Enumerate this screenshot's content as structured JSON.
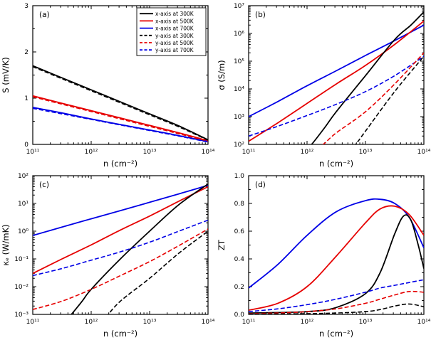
{
  "figure": {
    "background": "#ffffff"
  },
  "colors": {
    "black": "#000000",
    "red": "#e60000",
    "blue": "#0000e6"
  },
  "chart_data": [
    {
      "panel": "(a)",
      "type": "line",
      "xlabel": "n (cm⁻²)",
      "ylabel": "S (mV/K)",
      "xscale": "log",
      "xlim": [
        100000000000.0,
        100000000000000.0
      ],
      "xticks": [
        {
          "v": 100000000000.0,
          "label": "10¹¹"
        },
        {
          "v": 1000000000000.0,
          "label": "10¹²"
        },
        {
          "v": 10000000000000.0,
          "label": "10¹³"
        },
        {
          "v": 100000000000000.0,
          "label": "10¹⁴"
        }
      ],
      "yscale": "linear",
      "ylim": [
        0,
        3
      ],
      "yminor": 0.5,
      "yticks": [
        {
          "v": 0,
          "label": "0"
        },
        {
          "v": 1,
          "label": "1"
        },
        {
          "v": 2,
          "label": "2"
        },
        {
          "v": 3,
          "label": "3"
        }
      ],
      "legend": [
        {
          "label": "x-axis at 300K",
          "color": "#000000",
          "dash": false
        },
        {
          "label": "x-axis at 500K",
          "color": "#e60000",
          "dash": false
        },
        {
          "label": "x-axis at 700K",
          "color": "#0000e6",
          "dash": false
        },
        {
          "label": "y-axis at 300K",
          "color": "#000000",
          "dash": true
        },
        {
          "label": "y-axis at 500K",
          "color": "#e60000",
          "dash": true
        },
        {
          "label": "y-axis at 700K",
          "color": "#0000e6",
          "dash": true
        }
      ],
      "series": [
        {
          "name": "x-axis at 300K",
          "color": "#000000",
          "dash": false,
          "x": [
            100000000000.0,
            316000000000.0,
            1000000000000.0,
            3160000000000.0,
            10000000000000.0,
            31600000000000.0,
            100000000000000.0
          ],
          "y": [
            1.7,
            1.44,
            1.18,
            0.92,
            0.66,
            0.4,
            0.1
          ]
        },
        {
          "name": "x-axis at 500K",
          "color": "#e60000",
          "dash": false,
          "x": [
            100000000000.0,
            316000000000.0,
            1000000000000.0,
            3160000000000.0,
            10000000000000.0,
            31600000000000.0,
            100000000000000.0
          ],
          "y": [
            1.05,
            0.89,
            0.73,
            0.57,
            0.41,
            0.25,
            0.08
          ]
        },
        {
          "name": "x-axis at 700K",
          "color": "#0000e6",
          "dash": false,
          "x": [
            100000000000.0,
            316000000000.0,
            1000000000000.0,
            3160000000000.0,
            10000000000000.0,
            31600000000000.0,
            100000000000000.0
          ],
          "y": [
            0.8,
            0.68,
            0.55,
            0.43,
            0.31,
            0.19,
            0.06
          ]
        },
        {
          "name": "y-axis at 300K",
          "color": "#000000",
          "dash": true,
          "x": [
            100000000000.0,
            316000000000.0,
            1000000000000.0,
            3160000000000.0,
            10000000000000.0,
            31600000000000.0,
            100000000000000.0
          ],
          "y": [
            1.68,
            1.42,
            1.16,
            0.9,
            0.64,
            0.38,
            0.09
          ]
        },
        {
          "name": "y-axis at 500K",
          "color": "#e60000",
          "dash": true,
          "x": [
            100000000000.0,
            316000000000.0,
            1000000000000.0,
            3160000000000.0,
            10000000000000.0,
            31600000000000.0,
            100000000000000.0
          ],
          "y": [
            1.03,
            0.87,
            0.71,
            0.55,
            0.39,
            0.23,
            0.07
          ]
        },
        {
          "name": "y-axis at 700K",
          "color": "#0000e6",
          "dash": true,
          "x": [
            100000000000.0,
            316000000000.0,
            1000000000000.0,
            3160000000000.0,
            10000000000000.0,
            31600000000000.0,
            100000000000000.0
          ],
          "y": [
            0.78,
            0.66,
            0.54,
            0.42,
            0.3,
            0.18,
            0.05
          ]
        }
      ]
    },
    {
      "panel": "(b)",
      "type": "line",
      "xlabel": "n (cm⁻²)",
      "ylabel": "σ (S/m)",
      "xscale": "log",
      "xlim": [
        100000000000.0,
        100000000000000.0
      ],
      "xticks": [
        {
          "v": 100000000000.0,
          "label": "10¹¹"
        },
        {
          "v": 1000000000000.0,
          "label": "10¹²"
        },
        {
          "v": 10000000000000.0,
          "label": "10¹³"
        },
        {
          "v": 100000000000000.0,
          "label": "10¹⁴"
        }
      ],
      "yscale": "log",
      "ylim": [
        100.0,
        10000000.0
      ],
      "yticks": [
        {
          "v": 100.0,
          "label": "10²"
        },
        {
          "v": 1000.0,
          "label": "10³"
        },
        {
          "v": 10000.0,
          "label": "10⁴"
        },
        {
          "v": 100000.0,
          "label": "10⁵"
        },
        {
          "v": 1000000.0,
          "label": "10⁶"
        },
        {
          "v": 10000000.0,
          "label": "10⁷"
        }
      ],
      "series": [
        {
          "name": "x-axis at 700K",
          "color": "#0000e6",
          "dash": false,
          "x": [
            100000000000.0,
            316000000000.0,
            1000000000000.0,
            3160000000000.0,
            10000000000000.0,
            31600000000000.0,
            100000000000000.0
          ],
          "y": [
            1000,
            3500,
            13000,
            45000,
            160000,
            550000,
            2000000
          ]
        },
        {
          "name": "x-axis at 500K",
          "color": "#e60000",
          "dash": false,
          "x": [
            100000000000.0,
            316000000000.0,
            1000000000000.0,
            3160000000000.0,
            10000000000000.0,
            31600000000000.0,
            100000000000000.0
          ],
          "y": [
            130,
            600,
            3000,
            15000,
            70000,
            400000,
            2800000
          ]
        },
        {
          "name": "x-axis at 300K",
          "color": "#000000",
          "dash": false,
          "x": [
            800000000000.0,
            1200000000000.0,
            2000000000000.0,
            3160000000000.0,
            10000000000000.0,
            31600000000000.0,
            60000000000000.0,
            100000000000000.0
          ],
          "y": [
            40,
            100,
            400,
            1500,
            30000,
            600000,
            2000000,
            6000000
          ]
        },
        {
          "name": "y-axis at 700K",
          "color": "#0000e6",
          "dash": true,
          "x": [
            100000000000.0,
            316000000000.0,
            1000000000000.0,
            3160000000000.0,
            10000000000000.0,
            31600000000000.0,
            100000000000000.0
          ],
          "y": [
            200,
            450,
            1100,
            2800,
            8000,
            30000,
            150000
          ]
        },
        {
          "name": "y-axis at 500K",
          "color": "#e60000",
          "dash": true,
          "x": [
            1500000000000.0,
            2000000000000.0,
            3160000000000.0,
            10000000000000.0,
            31600000000000.0,
            100000000000000.0
          ],
          "y": [
            70,
            110,
            260,
            1500,
            15000,
            200000
          ]
        },
        {
          "name": "y-axis at 300K",
          "color": "#000000",
          "dash": true,
          "x": [
            5000000000000.0,
            7000000000000.0,
            10000000000000.0,
            31600000000000.0,
            100000000000000.0
          ],
          "y": [
            60,
            110,
            300,
            8000,
            150000
          ]
        }
      ]
    },
    {
      "panel": "(c)",
      "type": "line",
      "xlabel": "n (cm⁻²)",
      "ylabel": "κₑ (W/mK)",
      "xscale": "log",
      "xlim": [
        100000000000.0,
        100000000000000.0
      ],
      "xticks": [
        {
          "v": 100000000000.0,
          "label": "10¹¹"
        },
        {
          "v": 1000000000000.0,
          "label": "10¹²"
        },
        {
          "v": 10000000000000.0,
          "label": "10¹³"
        },
        {
          "v": 100000000000000.0,
          "label": "10¹⁴"
        }
      ],
      "yscale": "log",
      "ylim": [
        0.001,
        100.0
      ],
      "yticks": [
        {
          "v": 0.001,
          "label": "10⁻³"
        },
        {
          "v": 0.01,
          "label": "10⁻²"
        },
        {
          "v": 0.1,
          "label": "10⁻¹"
        },
        {
          "v": 1,
          "label": "10⁰"
        },
        {
          "v": 10,
          "label": "10¹"
        },
        {
          "v": 100,
          "label": "10²"
        }
      ],
      "series": [
        {
          "name": "x-axis at 700K",
          "color": "#0000e6",
          "dash": false,
          "x": [
            100000000000.0,
            316000000000.0,
            1000000000000.0,
            3160000000000.0,
            10000000000000.0,
            31600000000000.0,
            100000000000000.0
          ],
          "y": [
            0.7,
            1.4,
            2.8,
            5.5,
            11,
            22,
            45
          ]
        },
        {
          "name": "x-axis at 500K",
          "color": "#e60000",
          "dash": false,
          "x": [
            100000000000.0,
            316000000000.0,
            1000000000000.0,
            3160000000000.0,
            10000000000000.0,
            31600000000000.0,
            100000000000000.0
          ],
          "y": [
            0.03,
            0.1,
            0.32,
            1.1,
            3.5,
            12,
            40
          ]
        },
        {
          "name": "x-axis at 300K",
          "color": "#000000",
          "dash": false,
          "x": [
            400000000000.0,
            700000000000.0,
            1000000000000.0,
            3160000000000.0,
            10000000000000.0,
            31600000000000.0,
            100000000000000.0
          ],
          "y": [
            0.0007,
            0.003,
            0.008,
            0.1,
            1.0,
            9,
            50
          ]
        },
        {
          "name": "y-axis at 700K",
          "color": "#0000e6",
          "dash": true,
          "x": [
            100000000000.0,
            316000000000.0,
            1000000000000.0,
            3160000000000.0,
            10000000000000.0,
            31600000000000.0,
            100000000000000.0
          ],
          "y": [
            0.025,
            0.045,
            0.09,
            0.18,
            0.4,
            1.0,
            2.5
          ]
        },
        {
          "name": "y-axis at 500K",
          "color": "#e60000",
          "dash": true,
          "x": [
            100000000000.0,
            316000000000.0,
            1000000000000.0,
            3160000000000.0,
            10000000000000.0,
            31600000000000.0,
            100000000000000.0
          ],
          "y": [
            0.0015,
            0.003,
            0.008,
            0.025,
            0.08,
            0.3,
            1.2
          ]
        },
        {
          "name": "y-axis at 300K",
          "color": "#000000",
          "dash": true,
          "x": [
            1800000000000.0,
            3160000000000.0,
            10000000000000.0,
            31600000000000.0,
            100000000000000.0
          ],
          "y": [
            0.0008,
            0.003,
            0.02,
            0.16,
            1.0
          ]
        }
      ]
    },
    {
      "panel": "(d)",
      "type": "line",
      "xlabel": "n (cm⁻²)",
      "ylabel": "ZT",
      "xscale": "log",
      "xlim": [
        100000000000.0,
        100000000000000.0
      ],
      "xticks": [
        {
          "v": 100000000000.0,
          "label": "10¹¹"
        },
        {
          "v": 1000000000000.0,
          "label": "10¹²"
        },
        {
          "v": 10000000000000.0,
          "label": "10¹³"
        },
        {
          "v": 100000000000000.0,
          "label": "10¹⁴"
        }
      ],
      "yscale": "linear",
      "ylim": [
        0,
        1.0
      ],
      "yminor": 0.1,
      "yticks": [
        {
          "v": 0,
          "label": "0.0"
        },
        {
          "v": 0.2,
          "label": "0.2"
        },
        {
          "v": 0.4,
          "label": "0.4"
        },
        {
          "v": 0.6,
          "label": "0.6"
        },
        {
          "v": 0.8,
          "label": "0.8"
        },
        {
          "v": 1.0,
          "label": "1.0"
        }
      ],
      "series": [
        {
          "name": "x-axis at 700K",
          "color": "#0000e6",
          "dash": false,
          "x": [
            100000000000.0,
            316000000000.0,
            1000000000000.0,
            3160000000000.0,
            10000000000000.0,
            17800000000000.0,
            31600000000000.0,
            56000000000000.0,
            100000000000000.0
          ],
          "y": [
            0.19,
            0.36,
            0.57,
            0.74,
            0.82,
            0.83,
            0.8,
            0.7,
            0.48
          ]
        },
        {
          "name": "x-axis at 500K",
          "color": "#e60000",
          "dash": false,
          "x": [
            100000000000.0,
            316000000000.0,
            1000000000000.0,
            3160000000000.0,
            10000000000000.0,
            17800000000000.0,
            31600000000000.0,
            56000000000000.0,
            100000000000000.0
          ],
          "y": [
            0.03,
            0.08,
            0.2,
            0.42,
            0.66,
            0.76,
            0.78,
            0.72,
            0.57
          ]
        },
        {
          "name": "x-axis at 300K",
          "color": "#000000",
          "dash": false,
          "x": [
            100000000000.0,
            1000000000000.0,
            3160000000000.0,
            10000000000000.0,
            17800000000000.0,
            31600000000000.0,
            45000000000000.0,
            60000000000000.0,
            80000000000000.0,
            100000000000000.0
          ],
          "y": [
            0.01,
            0.02,
            0.05,
            0.15,
            0.3,
            0.58,
            0.71,
            0.68,
            0.5,
            0.33
          ]
        },
        {
          "name": "y-axis at 700K",
          "color": "#0000e6",
          "dash": true,
          "x": [
            100000000000.0,
            316000000000.0,
            1000000000000.0,
            3160000000000.0,
            10000000000000.0,
            17800000000000.0,
            31600000000000.0,
            56000000000000.0,
            100000000000000.0
          ],
          "y": [
            0.02,
            0.04,
            0.07,
            0.11,
            0.16,
            0.19,
            0.21,
            0.23,
            0.25
          ]
        },
        {
          "name": "y-axis at 500K",
          "color": "#e60000",
          "dash": true,
          "x": [
            100000000000.0,
            316000000000.0,
            1000000000000.0,
            3160000000000.0,
            10000000000000.0,
            17800000000000.0,
            31600000000000.0,
            56000000000000.0,
            100000000000000.0
          ],
          "y": [
            0.005,
            0.01,
            0.02,
            0.04,
            0.08,
            0.11,
            0.14,
            0.165,
            0.16
          ]
        },
        {
          "name": "y-axis at 300K",
          "color": "#000000",
          "dash": true,
          "x": [
            100000000000.0,
            316000000000.0,
            1000000000000.0,
            3160000000000.0,
            10000000000000.0,
            17800000000000.0,
            31600000000000.0,
            56000000000000.0,
            100000000000000.0
          ],
          "y": [
            0.002,
            0.003,
            0.005,
            0.01,
            0.02,
            0.035,
            0.06,
            0.075,
            0.055
          ]
        }
      ]
    }
  ]
}
